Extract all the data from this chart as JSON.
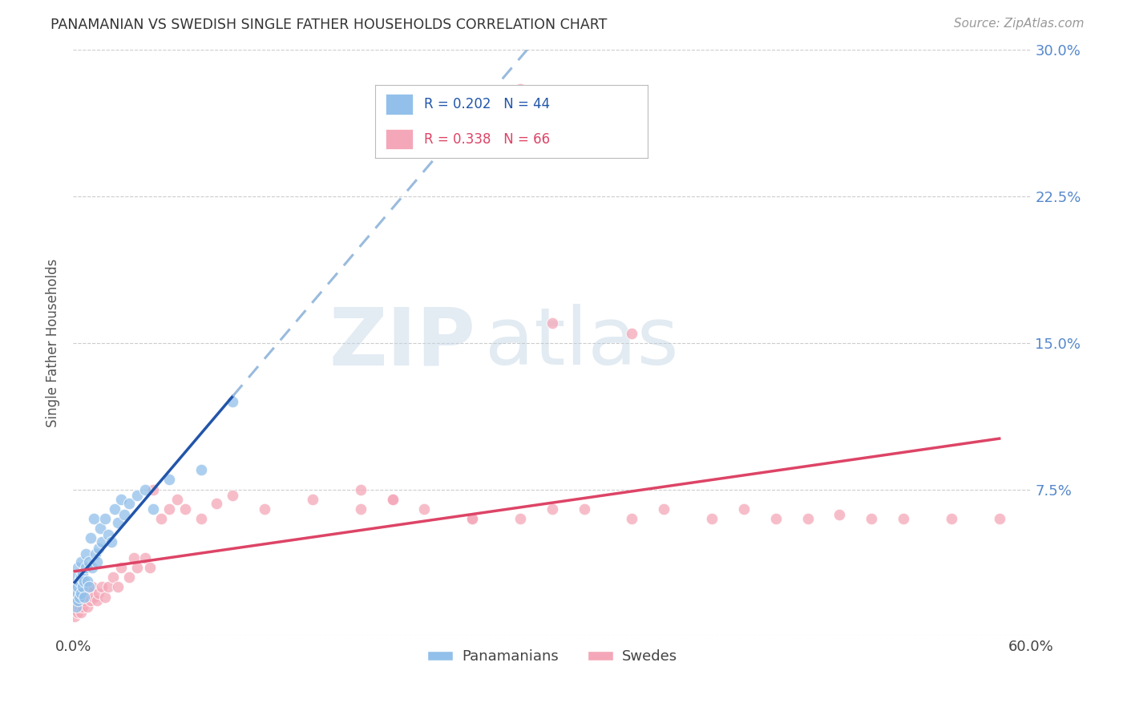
{
  "title": "PANAMANIAN VS SWEDISH SINGLE FATHER HOUSEHOLDS CORRELATION CHART",
  "source": "Source: ZipAtlas.com",
  "ylabel": "Single Father Households",
  "xlim": [
    0.0,
    0.6
  ],
  "ylim": [
    0.0,
    0.3
  ],
  "xticks": [
    0.0,
    0.15,
    0.3,
    0.45,
    0.6
  ],
  "xtick_labels": [
    "0.0%",
    "",
    "",
    "",
    "60.0%"
  ],
  "ytick_labels": [
    "",
    "7.5%",
    "15.0%",
    "22.5%",
    "30.0%"
  ],
  "yticks": [
    0.0,
    0.075,
    0.15,
    0.225,
    0.3
  ],
  "grid_color": "#cccccc",
  "background_color": "#ffffff",
  "watermark_zip": "ZIP",
  "watermark_atlas": "atlas",
  "blue_color": "#92c0ea",
  "pink_color": "#f4a7b8",
  "blue_line_color": "#2255aa",
  "pink_line_color": "#dd4466",
  "blue_dash_color": "#99bbdd",
  "tick_label_color_right": "#5588cc",
  "legend_r1": "R = 0.202",
  "legend_n1": "N = 44",
  "legend_r2": "R = 0.338",
  "legend_n2": "N = 66",
  "pan_x": [
    0.001,
    0.001,
    0.002,
    0.002,
    0.002,
    0.003,
    0.003,
    0.003,
    0.004,
    0.004,
    0.005,
    0.005,
    0.005,
    0.006,
    0.006,
    0.007,
    0.007,
    0.008,
    0.008,
    0.009,
    0.01,
    0.01,
    0.011,
    0.012,
    0.013,
    0.014,
    0.015,
    0.016,
    0.017,
    0.018,
    0.02,
    0.022,
    0.024,
    0.026,
    0.028,
    0.03,
    0.032,
    0.035,
    0.04,
    0.045,
    0.05,
    0.06,
    0.08,
    0.1
  ],
  "pan_y": [
    0.02,
    0.025,
    0.015,
    0.022,
    0.03,
    0.018,
    0.025,
    0.035,
    0.02,
    0.028,
    0.022,
    0.03,
    0.038,
    0.025,
    0.032,
    0.02,
    0.028,
    0.035,
    0.042,
    0.028,
    0.025,
    0.038,
    0.05,
    0.035,
    0.06,
    0.042,
    0.038,
    0.045,
    0.055,
    0.048,
    0.06,
    0.052,
    0.048,
    0.065,
    0.058,
    0.07,
    0.062,
    0.068,
    0.072,
    0.075,
    0.065,
    0.08,
    0.085,
    0.12
  ],
  "swe_x": [
    0.001,
    0.002,
    0.002,
    0.003,
    0.003,
    0.004,
    0.004,
    0.005,
    0.005,
    0.006,
    0.006,
    0.007,
    0.007,
    0.008,
    0.009,
    0.01,
    0.011,
    0.012,
    0.013,
    0.015,
    0.016,
    0.018,
    0.02,
    0.022,
    0.025,
    0.028,
    0.03,
    0.035,
    0.038,
    0.04,
    0.045,
    0.048,
    0.05,
    0.055,
    0.06,
    0.065,
    0.07,
    0.08,
    0.09,
    0.1,
    0.12,
    0.15,
    0.18,
    0.2,
    0.22,
    0.25,
    0.28,
    0.3,
    0.32,
    0.35,
    0.37,
    0.4,
    0.42,
    0.44,
    0.46,
    0.48,
    0.5,
    0.52,
    0.55,
    0.58,
    0.3,
    0.35,
    0.25,
    0.28,
    0.18,
    0.2
  ],
  "swe_y": [
    0.01,
    0.015,
    0.02,
    0.012,
    0.018,
    0.015,
    0.022,
    0.012,
    0.02,
    0.015,
    0.022,
    0.018,
    0.025,
    0.02,
    0.015,
    0.022,
    0.018,
    0.025,
    0.02,
    0.018,
    0.022,
    0.025,
    0.02,
    0.025,
    0.03,
    0.025,
    0.035,
    0.03,
    0.04,
    0.035,
    0.04,
    0.035,
    0.075,
    0.06,
    0.065,
    0.07,
    0.065,
    0.06,
    0.068,
    0.072,
    0.065,
    0.07,
    0.065,
    0.07,
    0.065,
    0.06,
    0.28,
    0.065,
    0.065,
    0.06,
    0.065,
    0.06,
    0.065,
    0.06,
    0.06,
    0.062,
    0.06,
    0.06,
    0.06,
    0.06,
    0.16,
    0.155,
    0.06,
    0.06,
    0.075,
    0.07
  ]
}
